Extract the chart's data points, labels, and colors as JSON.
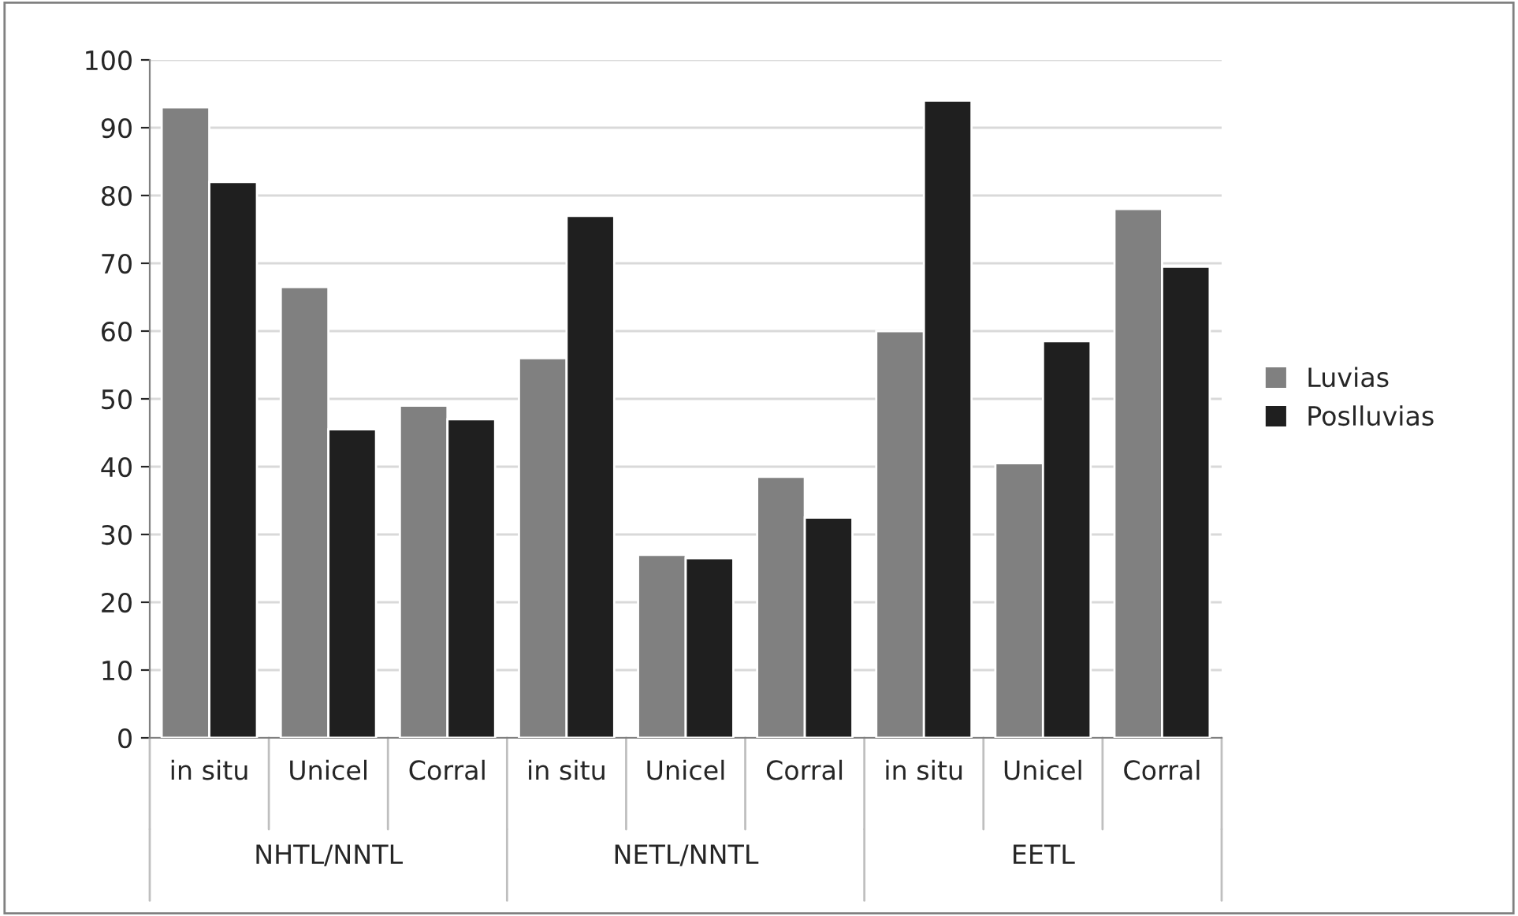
{
  "chart_data": {
    "type": "bar",
    "categories": [
      "in situ",
      "Unicel",
      "Corral",
      "in situ",
      "Unicel",
      "Corral",
      "in situ",
      "Unicel",
      "Corral"
    ],
    "series": [
      {
        "name": "Luvias",
        "color": "#808080",
        "values": [
          93,
          66.5,
          49,
          56,
          27,
          38.5,
          60,
          40.5,
          78
        ]
      },
      {
        "name": "Poslluvias",
        "color": "#1f1f1f",
        "values": [
          82,
          45.5,
          47,
          77,
          26.5,
          32.5,
          94,
          58.5,
          69.5
        ]
      }
    ],
    "annotations": [
      "NHTL/NNTL",
      "NETL/NNTL",
      "EETL"
    ],
    "ylim": [
      0,
      100
    ],
    "yticks": [
      0,
      10,
      20,
      30,
      40,
      50,
      60,
      70,
      80,
      90,
      100
    ],
    "grid": "y",
    "legend": "right"
  }
}
